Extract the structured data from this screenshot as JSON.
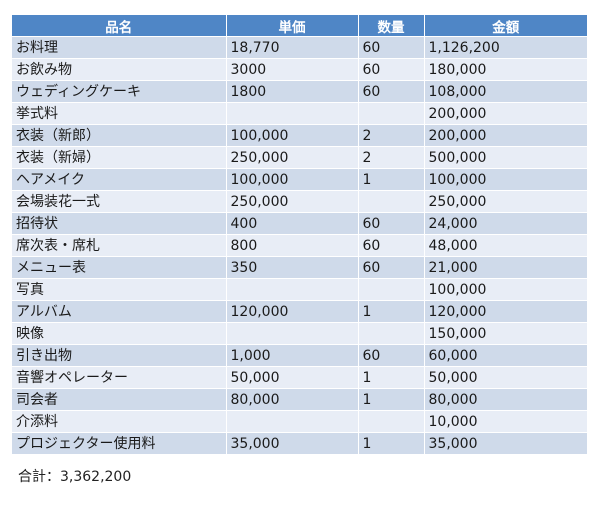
{
  "table": {
    "headers": [
      "品名",
      "単価",
      "数量",
      "金額"
    ],
    "header_color": "#4f86c6",
    "rows": [
      {
        "item": "お料理",
        "unit_price": "18,770",
        "quantity": "60",
        "amount": "1,126,200"
      },
      {
        "item": "お飲み物",
        "unit_price": "3000",
        "quantity": "60",
        "amount": "180,000"
      },
      {
        "item": "ウェディングケーキ",
        "unit_price": "1800",
        "quantity": "60",
        "amount": "108,000"
      },
      {
        "item": "挙式料",
        "unit_price": "",
        "quantity": "",
        "amount": "200,000"
      },
      {
        "item": "衣装（新郎）",
        "unit_price": "100,000",
        "quantity": "2",
        "amount": "200,000"
      },
      {
        "item": "衣装（新婦）",
        "unit_price": "250,000",
        "quantity": "2",
        "amount": "500,000"
      },
      {
        "item": "ヘアメイク",
        "unit_price": "100,000",
        "quantity": "1",
        "amount": "100,000"
      },
      {
        "item": "会場装花一式",
        "unit_price": "250,000",
        "quantity": "",
        "amount": "250,000"
      },
      {
        "item": "招待状",
        "unit_price": "400",
        "quantity": "60",
        "amount": "24,000"
      },
      {
        "item": "席次表・席札",
        "unit_price": "800",
        "quantity": "60",
        "amount": "48,000"
      },
      {
        "item": "メニュー表",
        "unit_price": "350",
        "quantity": "60",
        "amount": "21,000"
      },
      {
        "item": "写真",
        "unit_price": "",
        "quantity": "",
        "amount": "100,000"
      },
      {
        "item": "アルバム",
        "unit_price": "120,000",
        "quantity": "1",
        "amount": "120,000"
      },
      {
        "item": "映像",
        "unit_price": "",
        "quantity": "",
        "amount": "150,000"
      },
      {
        "item": "引き出物",
        "unit_price": "1,000",
        "quantity": "60",
        "amount": "60,000"
      },
      {
        "item": "音響オペレーター",
        "unit_price": "50,000",
        "quantity": "1",
        "amount": "50,000"
      },
      {
        "item": "司会者",
        "unit_price": "80,000",
        "quantity": "1",
        "amount": "80,000"
      },
      {
        "item": "介添料",
        "unit_price": "",
        "quantity": "",
        "amount": "10,000"
      },
      {
        "item": "プロジェクター使用料",
        "unit_price": "35,000",
        "quantity": "1",
        "amount": "35,000"
      }
    ]
  },
  "total": {
    "text": "合計：3,362,200"
  }
}
